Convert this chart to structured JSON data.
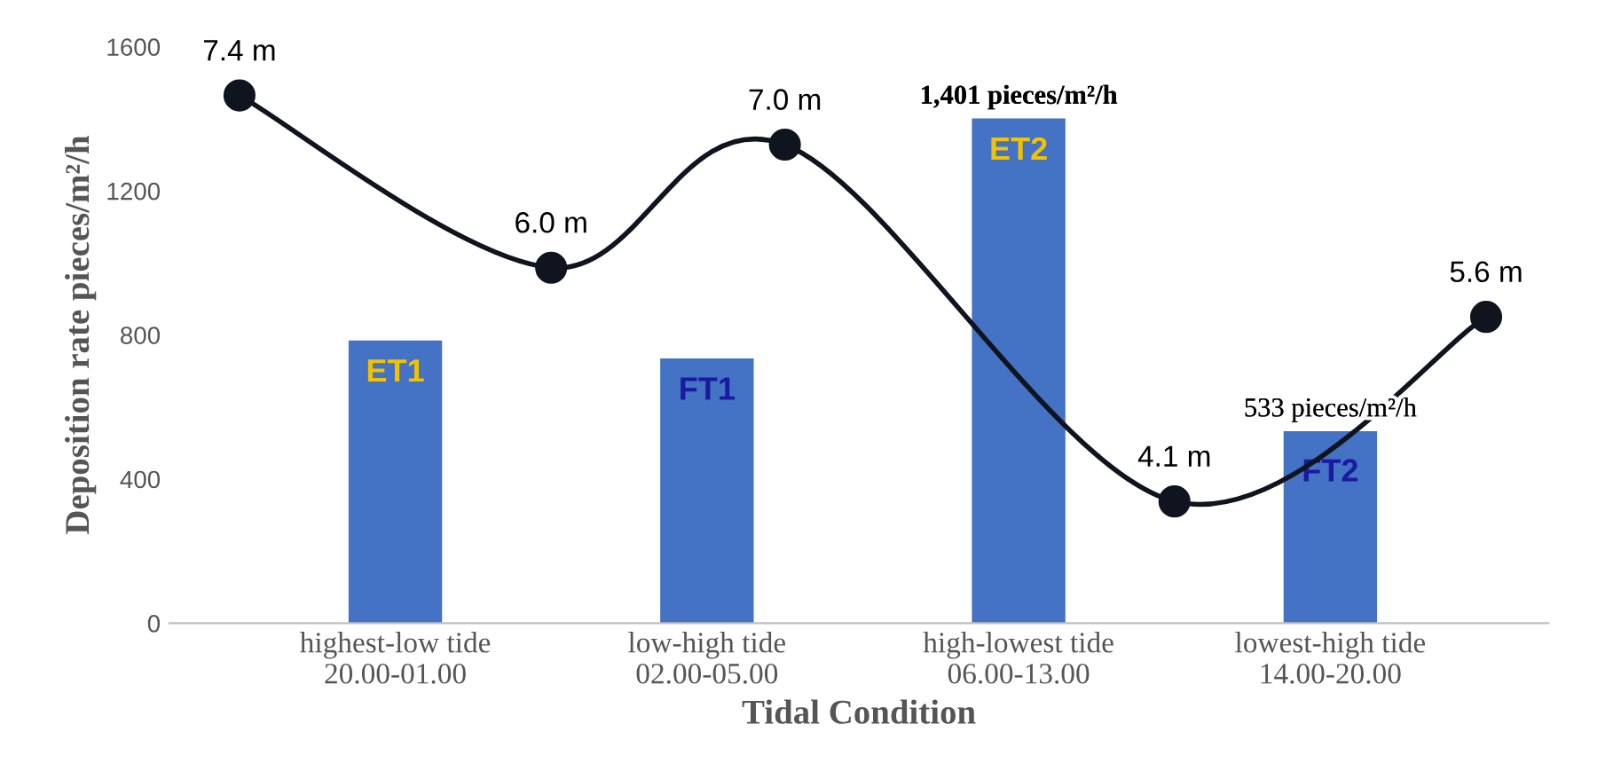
{
  "chart_data": {
    "type": "bar",
    "xlabel": "Tidal Condition",
    "ylabel": "Deposition rate pieces/m²/h",
    "categories": [
      null,
      null,
      "highest-low tide\n20.00-01.00",
      null,
      null,
      null,
      "low-high tide\n02.00-05.00",
      null,
      null,
      null,
      "high-lowest tide\n06.00-13.00",
      null,
      null,
      null,
      "lowest-high tide\n14.00-20.00",
      null,
      null
    ],
    "ylim": [
      0,
      1600
    ],
    "yticks": [
      0,
      400,
      800,
      1200,
      1600
    ],
    "grid": false,
    "series": [
      {
        "color": "#4472c4",
        "values": [
          null,
          null,
          785,
          null,
          null,
          null,
          735,
          null,
          null,
          null,
          1401,
          null,
          null,
          null,
          533,
          null,
          null
        ],
        "value_labels": [
          null,
          null,
          null,
          null,
          null,
          null,
          null,
          null,
          null,
          null,
          "1,401 pieces/m²/h",
          null,
          null,
          null,
          "533 pieces/m²/h",
          null,
          null
        ]
      },
      {
        "type": "line",
        "axis": "y2",
        "color": "#10141f",
        "marker": "circle",
        "line_style": "solid",
        "values": [
          7.4,
          null,
          null,
          null,
          6.0,
          null,
          null,
          7.0,
          null,
          null,
          null,
          null,
          4.1,
          null,
          null,
          null,
          5.6
        ],
        "value_labels": [
          "7.4 m",
          null,
          null,
          null,
          "6.0 m",
          null,
          null,
          "7.0 m",
          null,
          null,
          null,
          null,
          "4.1 m",
          null,
          null,
          null,
          "5.6 m"
        ]
      }
    ],
    "annotations": [
      "ET1",
      "FT1",
      "ET2",
      "FT2"
    ]
  }
}
